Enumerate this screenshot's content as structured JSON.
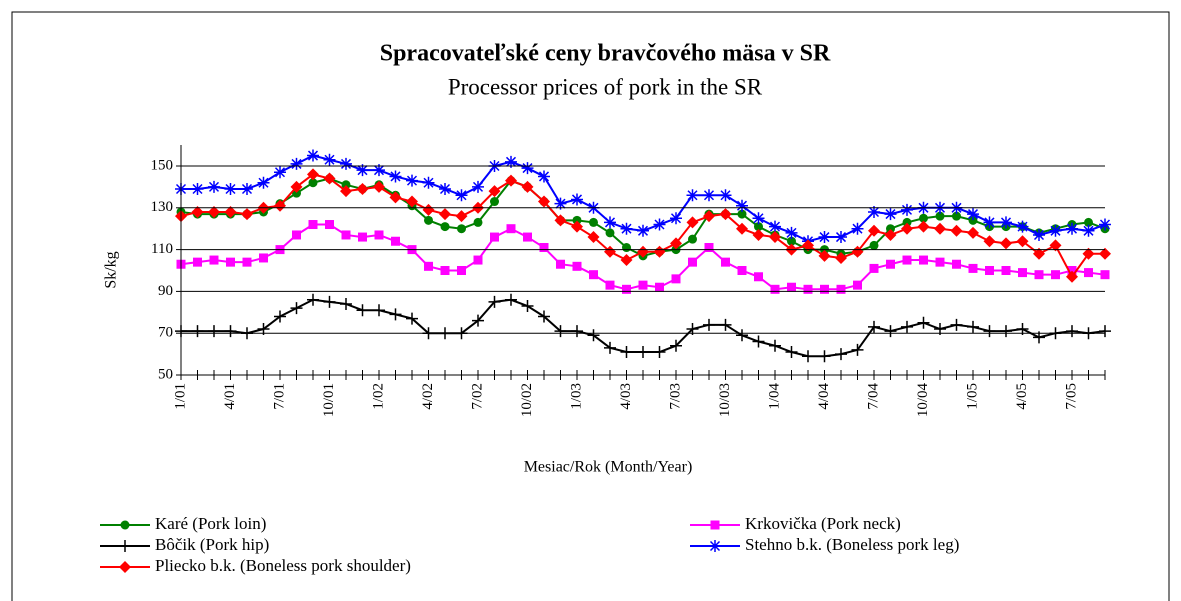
{
  "chart_data": {
    "type": "line",
    "title": "Spracovateľské ceny bravčového mäsa v SR",
    "subtitle": "Processor prices of pork in the SR",
    "y_label": "Sk/kg",
    "x_label": "Mesiac/Rok (Month/Year)",
    "categories": [
      "1/01",
      null,
      null,
      "4/01",
      null,
      null,
      "7/01",
      null,
      null,
      "10/01",
      null,
      null,
      "1/02",
      null,
      null,
      "4/02",
      null,
      null,
      "7/02",
      null,
      null,
      "10/02",
      null,
      null,
      "1/03",
      null,
      null,
      "4/03",
      null,
      null,
      "7/03",
      null,
      null,
      "10/03",
      null,
      null,
      "1/04",
      null,
      null,
      "4/04",
      null,
      null,
      "7/04",
      null,
      null,
      "10/04",
      null,
      null,
      "1/05",
      null,
      null,
      "4/05",
      null,
      null,
      "7/05",
      null,
      null
    ],
    "ylim": [
      50,
      150
    ],
    "yticks": [
      50,
      70,
      90,
      110,
      130,
      150
    ],
    "grid": true,
    "legend": "bottom",
    "series": [
      {
        "name": "Karé (Pork loin)",
        "color": "#008000",
        "marker": "circle",
        "values": [
          128,
          127,
          127,
          127,
          127,
          128,
          132,
          137,
          142,
          144,
          141,
          139,
          141,
          136,
          131,
          124,
          121,
          120,
          123,
          133,
          143,
          140,
          133,
          124,
          124,
          123,
          118,
          111,
          107,
          109,
          110,
          115,
          127,
          127,
          127,
          121,
          117,
          114,
          110,
          110,
          108,
          109,
          112,
          120,
          123,
          125,
          126,
          126,
          124,
          121,
          121,
          121,
          118,
          120,
          122,
          123,
          120
        ]
      },
      {
        "name": "Krkovička (Pork neck)",
        "color": "#ff00ff",
        "marker": "square",
        "values": [
          103,
          104,
          105,
          104,
          104,
          106,
          110,
          117,
          122,
          122,
          117,
          116,
          117,
          114,
          110,
          102,
          100,
          100,
          105,
          116,
          120,
          116,
          111,
          103,
          102,
          98,
          93,
          91,
          93,
          92,
          96,
          104,
          111,
          104,
          100,
          97,
          91,
          92,
          91,
          91,
          91,
          93,
          101,
          103,
          105,
          105,
          104,
          103,
          101,
          100,
          100,
          99,
          98,
          98,
          100,
          99,
          98
        ]
      },
      {
        "name": "Bôčik (Pork hip)",
        "color": "#000000",
        "marker": "plus",
        "values": [
          71,
          71,
          71,
          71,
          70,
          72,
          78,
          82,
          86,
          85,
          84,
          81,
          81,
          79,
          77,
          70,
          70,
          70,
          76,
          85,
          86,
          83,
          78,
          71,
          71,
          69,
          63,
          61,
          61,
          61,
          64,
          72,
          74,
          74,
          69,
          66,
          64,
          61,
          59,
          59,
          60,
          62,
          73,
          71,
          73,
          75,
          72,
          74,
          73,
          71,
          71,
          72,
          68,
          70,
          71,
          70,
          71
        ]
      },
      {
        "name": "Stehno b.k. (Boneless pork leg)",
        "color": "#0000ff",
        "marker": "star",
        "values": [
          139,
          139,
          140,
          139,
          139,
          142,
          147,
          151,
          155,
          153,
          151,
          148,
          148,
          145,
          143,
          142,
          139,
          136,
          140,
          150,
          152,
          149,
          145,
          132,
          134,
          130,
          123,
          120,
          119,
          122,
          125,
          136,
          136,
          136,
          131,
          125,
          121,
          118,
          114,
          116,
          116,
          120,
          128,
          127,
          129,
          130,
          130,
          130,
          127,
          123,
          123,
          121,
          117,
          119,
          120,
          119,
          122
        ]
      },
      {
        "name": "Pliecko b.k. (Boneless pork shoulder)",
        "color": "#ff0000",
        "marker": "diamond",
        "values": [
          126,
          128,
          128,
          128,
          127,
          130,
          131,
          140,
          146,
          144,
          138,
          139,
          140,
          135,
          133,
          129,
          127,
          126,
          130,
          138,
          143,
          140,
          133,
          124,
          121,
          116,
          109,
          105,
          109,
          109,
          113,
          123,
          126,
          127,
          120,
          117,
          116,
          110,
          112,
          107,
          106,
          109,
          119,
          117,
          120,
          121,
          120,
          119,
          118,
          114,
          113,
          114,
          108,
          112,
          97,
          108,
          108
        ]
      }
    ]
  }
}
